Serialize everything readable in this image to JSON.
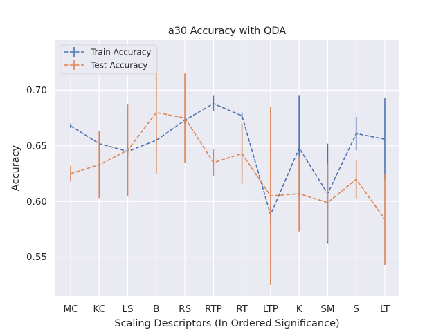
{
  "chart_data": {
    "type": "line",
    "title": "a30 Accuracy with QDA",
    "xlabel": "Scaling Descriptors (In Ordered Significance)",
    "ylabel": "Accuracy",
    "categories": [
      "MC",
      "KC",
      "LS",
      "B",
      "RS",
      "RTP",
      "RT",
      "LTP",
      "K",
      "SM",
      "S",
      "LT"
    ],
    "ylim": [
      0.515,
      0.745
    ],
    "yticks": [
      "0.55",
      "0.60",
      "0.65",
      "0.70"
    ],
    "grid": true,
    "legend_position": "top-left",
    "series": [
      {
        "name": "Train Accuracy",
        "color": "#4c72b0",
        "values": [
          0.668,
          0.652,
          0.645,
          0.655,
          0.673,
          0.688,
          0.677,
          0.588,
          0.648,
          0.607,
          0.661,
          0.656
        ],
        "errors": [
          0.002,
          0.002,
          0.003,
          0.003,
          0.003,
          0.007,
          0.003,
          0.008,
          0.047,
          0.045,
          0.015,
          0.037
        ]
      },
      {
        "name": "Test Accuracy",
        "color": "#dd8452",
        "values": [
          0.625,
          0.633,
          0.646,
          0.68,
          0.675,
          0.635,
          0.643,
          0.605,
          0.607,
          0.599,
          0.62,
          0.584
        ],
        "errors": [
          0.007,
          0.03,
          0.041,
          0.055,
          0.04,
          0.012,
          0.027,
          0.08,
          0.034,
          0.035,
          0.017,
          0.041
        ]
      }
    ]
  }
}
